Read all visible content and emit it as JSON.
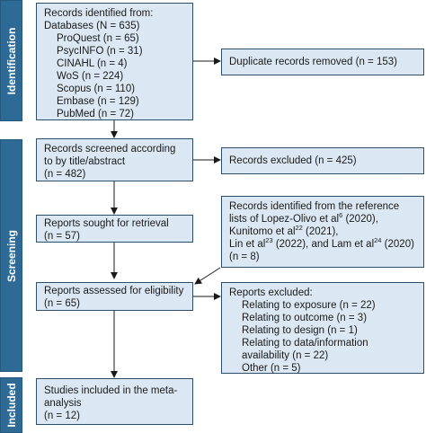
{
  "stages": {
    "identification": "Identification",
    "screening": "Screening",
    "included": "Included"
  },
  "records_identified": {
    "title": "Records identified from:",
    "databases": "Databases (N = 635)",
    "sources": [
      "ProQuest (n = 65)",
      "PsycINFO (n = 31)",
      "CINAHL (n = 4)",
      "WoS (n = 224)",
      "Scopus (n = 110)",
      "Embase (n = 129)",
      "PubMed (n = 72)"
    ]
  },
  "duplicates_removed": "Duplicate records removed (n = 153)",
  "records_screened": {
    "line1": "Records screened according",
    "line2": "to by title/abstract",
    "line3": "(n = 482)"
  },
  "records_excluded": "Records excluded (n = 425)",
  "reports_sought": {
    "line1": "Reports sought for retrieval",
    "line2": "(n = 57)"
  },
  "reference_lists": {
    "line1": "Records identified from the reference",
    "line2_a": "lists of Lopez-Olivo et al",
    "line2_sup": "6",
    "line2_b": " (2020),",
    "line3_a": "Kunitomo et al",
    "line3_sup": "22",
    "line3_b": " (2021),",
    "line4_a": "Lin et al",
    "line4_sup": "23",
    "line4_b": " (2022), and Lam et al",
    "line4_sup2": "24",
    "line4_c": " (2020)",
    "line5": "(n = 8)"
  },
  "reports_assessed": {
    "line1": "Reports assessed for eligibility",
    "line2": "(n = 65)"
  },
  "reports_excluded": {
    "title": "Reports excluded:",
    "items": [
      "Relating to exposure (n = 22)",
      "Relating to outcome (n = 3)",
      "Relating to design (n = 1)",
      "Relating to data/information",
      "availability (n = 22)",
      "Other (n = 5)"
    ]
  },
  "studies_included": {
    "line1": "Studies included in the meta-",
    "line2": "analysis",
    "line3": "(n = 12)"
  },
  "colors": {
    "stage_bar": "#2e6a96",
    "box_fill": "#dbe8f3",
    "box_border": "#2b4f6b"
  }
}
